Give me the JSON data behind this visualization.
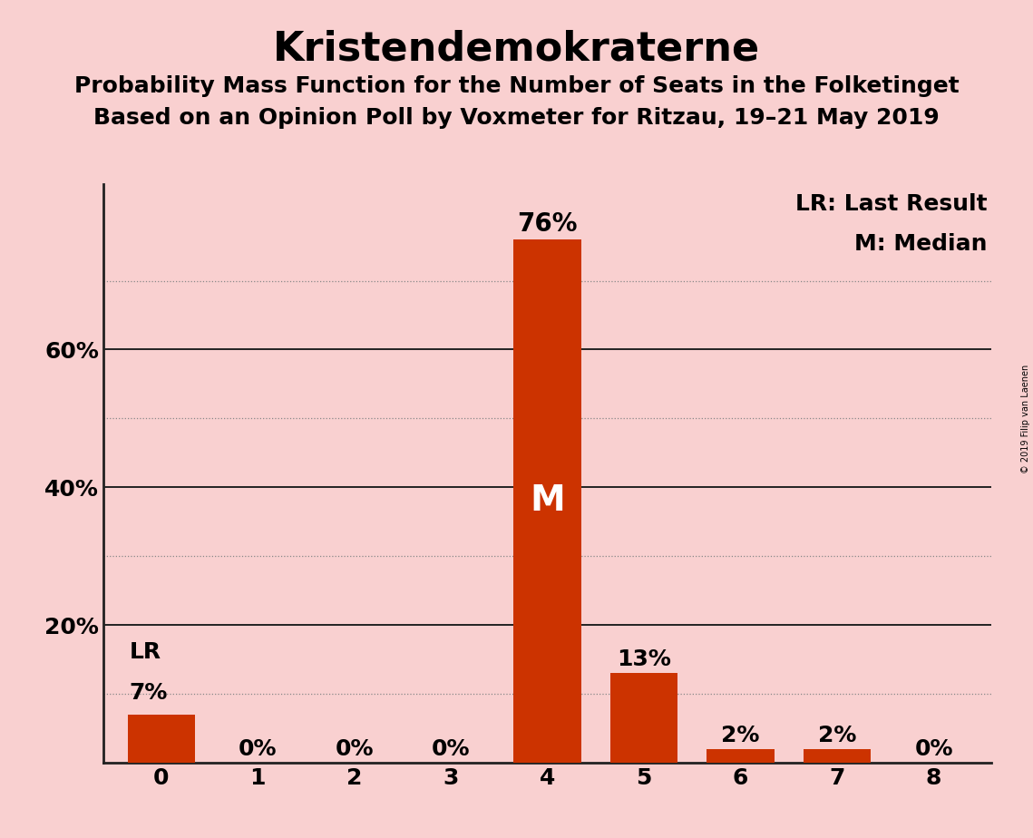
{
  "title": "Kristendemokraterne",
  "subtitle1": "Probability Mass Function for the Number of Seats in the Folketinget",
  "subtitle2": "Based on an Opinion Poll by Voxmeter for Ritzau, 19–21 May 2019",
  "categories": [
    0,
    1,
    2,
    3,
    4,
    5,
    6,
    7,
    8
  ],
  "values": [
    0.07,
    0.0,
    0.0,
    0.0,
    0.76,
    0.13,
    0.02,
    0.02,
    0.0
  ],
  "labels": [
    "7%",
    "0%",
    "0%",
    "0%",
    "76%",
    "13%",
    "2%",
    "2%",
    "0%"
  ],
  "bar_color": "#cc3300",
  "background_color": "#f9d0d0",
  "median_bar": 4,
  "lr_bar": 0,
  "median_label": "M",
  "lr_label": "LR",
  "legend_lr": "LR: Last Result",
  "legend_m": "M: Median",
  "solid_gridlines": [
    0.2,
    0.4,
    0.6
  ],
  "dotted_gridlines": [
    0.1,
    0.3,
    0.5,
    0.7
  ],
  "ytick_positions": [
    0.2,
    0.4,
    0.6
  ],
  "ytick_labels": [
    "20%",
    "40%",
    "60%"
  ],
  "ylim": [
    0,
    0.84
  ],
  "copyright_text": "© 2019 Filip van Laenen",
  "title_fontsize": 32,
  "subtitle_fontsize": 18,
  "tick_fontsize": 18,
  "label_fontsize": 18,
  "legend_fontsize": 18,
  "median_fontsize": 28
}
